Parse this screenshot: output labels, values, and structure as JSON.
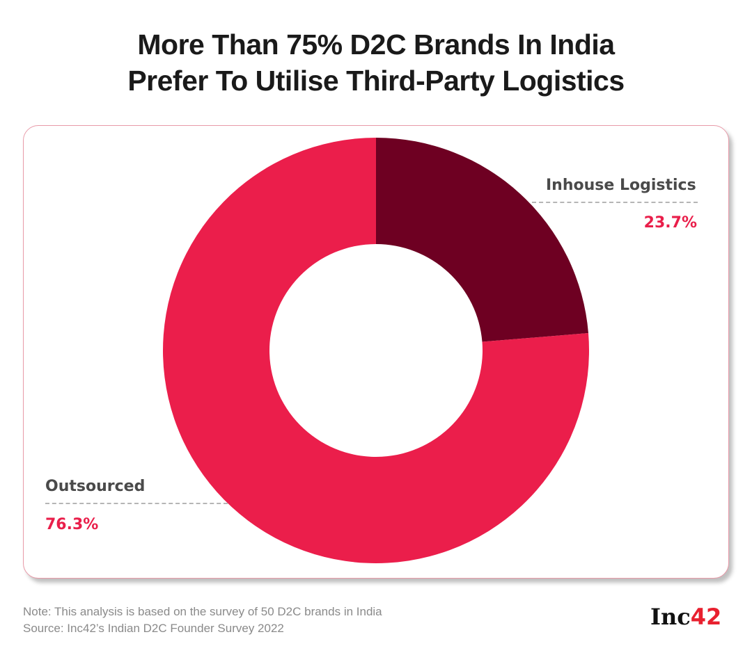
{
  "title_lines": [
    "More Than 75% D2C Brands In India",
    "Prefer To Utilise Third-Party Logistics"
  ],
  "chart_data": {
    "type": "pie",
    "donut": true,
    "categories": [
      "Inhouse Logistics",
      "Outsourced"
    ],
    "values": [
      23.7,
      76.3
    ],
    "value_labels": [
      "23.7%",
      "76.3%"
    ],
    "colors": [
      "#6e0022",
      "#eb1e4b"
    ]
  },
  "footer": {
    "note": "Note: This analysis is based on the survey of 50 D2C brands in India",
    "source": "Source: Inc42’s Indian D2C Founder Survey 2022"
  },
  "logo": {
    "text": "Inc",
    "accent": "42"
  }
}
